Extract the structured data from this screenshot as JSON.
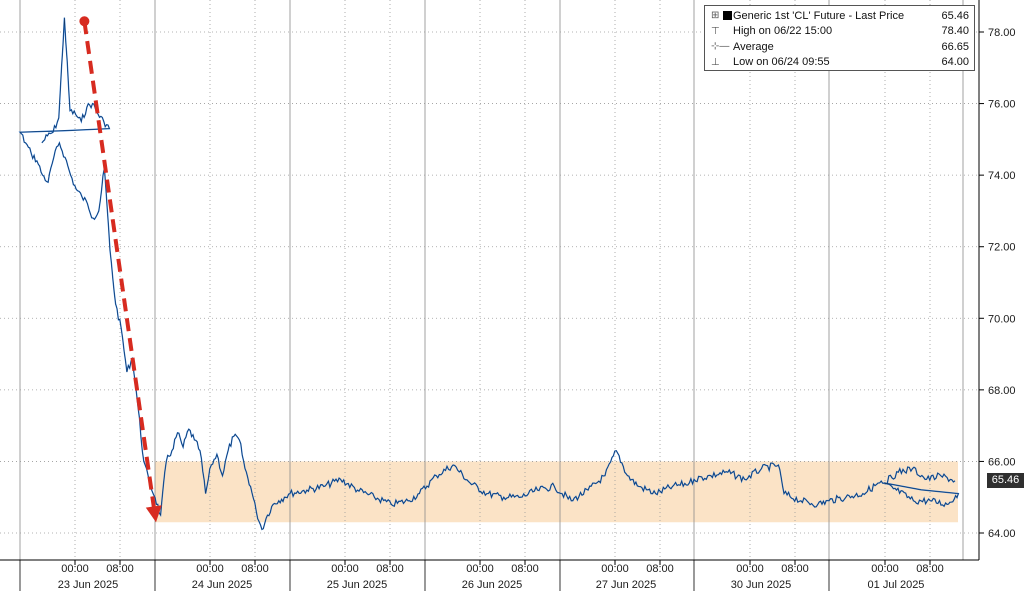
{
  "chart_data": {
    "type": "line",
    "title": "",
    "xlabel": "",
    "ylabel": "",
    "ylim": [
      63.6,
      78.8
    ],
    "y_ticks": [
      "64.00",
      "66.00",
      "68.00",
      "70.00",
      "72.00",
      "74.00",
      "76.00",
      "78.00"
    ],
    "x_time_labels": [
      "00:00",
      "08:00",
      "00:00",
      "08:00",
      "00:00",
      "08:00",
      "00:00",
      "08:00",
      "00:00",
      "08:00",
      "00:00",
      "08:00",
      "00:00",
      "08:00"
    ],
    "x_date_labels": [
      "23 Jun 2025",
      "24 Jun 2025",
      "25 Jun 2025",
      "26 Jun 2025",
      "27 Jun 2025",
      "30 Jun 2025",
      "01 Jul 2025"
    ],
    "series": [
      {
        "name": "Generic 1st 'CL' Future - Last Price",
        "color": "#1f6fcf",
        "points": [
          [
            "06/22 11:00",
            74.9
          ],
          [
            "06/22 12:00",
            75.1
          ],
          [
            "06/22 13:00",
            75.2
          ],
          [
            "06/22 14:00",
            75.6
          ],
          [
            "06/22 15:00",
            78.4
          ],
          [
            "06/22 16:00",
            75.8
          ],
          [
            "06/22 17:00",
            75.7
          ],
          [
            "06/22 18:00",
            75.5
          ],
          [
            "06/22 19:00",
            75.9
          ],
          [
            "06/22 20:00",
            76.0
          ],
          [
            "06/22 21:00",
            75.7
          ],
          [
            "06/22 22:00",
            75.5
          ],
          [
            "06/22 23:00",
            75.3
          ],
          [
            "06/23 00:00",
            75.2
          ],
          [
            "06/23 01:00",
            74.9
          ],
          [
            "06/23 02:00",
            74.6
          ],
          [
            "06/23 03:00",
            74.4
          ],
          [
            "06/23 04:00",
            74.0
          ],
          [
            "06/23 05:00",
            73.8
          ],
          [
            "06/23 06:00",
            74.5
          ],
          [
            "06/23 07:00",
            74.9
          ],
          [
            "06/23 08:00",
            74.5
          ],
          [
            "06/23 09:00",
            74.0
          ],
          [
            "06/23 10:00",
            73.6
          ],
          [
            "06/23 11:00",
            73.4
          ],
          [
            "06/23 12:00",
            73.2
          ],
          [
            "06/23 13:00",
            72.8
          ],
          [
            "06/23 14:00",
            73.0
          ],
          [
            "06/23 15:00",
            74.2
          ],
          [
            "06/23 16:00",
            71.9
          ],
          [
            "06/23 17:00",
            70.4
          ],
          [
            "06/23 18:00",
            69.7
          ],
          [
            "06/23 19:00",
            68.5
          ],
          [
            "06/23 20:00",
            68.9
          ],
          [
            "06/23 21:00",
            67.5
          ],
          [
            "06/23 22:00",
            66.0
          ],
          [
            "06/23 23:00",
            65.4
          ],
          [
            "06/24 00:00",
            65.0
          ],
          [
            "06/24 01:00",
            64.5
          ],
          [
            "06/24 02:00",
            66.0
          ],
          [
            "06/24 03:00",
            66.3
          ],
          [
            "06/24 04:00",
            66.8
          ],
          [
            "06/24 05:00",
            66.4
          ],
          [
            "06/24 06:00",
            66.9
          ],
          [
            "06/24 07:00",
            66.6
          ],
          [
            "06/24 08:00",
            66.3
          ],
          [
            "06/24 09:00",
            65.1
          ],
          [
            "06/24 10:00",
            65.9
          ],
          [
            "06/24 11:00",
            66.2
          ],
          [
            "06/24 12:00",
            65.6
          ],
          [
            "06/24 13:00",
            66.3
          ],
          [
            "06/24 14:00",
            66.7
          ],
          [
            "06/24 15:00",
            66.6
          ],
          [
            "06/24 16:00",
            65.8
          ],
          [
            "06/24 17:00",
            65.3
          ],
          [
            "06/24 18:00",
            64.6
          ],
          [
            "06/24 19:00",
            64.1
          ],
          [
            "06/24 20:00",
            64.5
          ],
          [
            "06/24 21:00",
            64.8
          ],
          [
            "06/24 22:00",
            64.9
          ],
          [
            "06/24 23:00",
            65.0
          ],
          [
            "06/25 00:00",
            65.1
          ],
          [
            "06/25 03:00",
            65.2
          ],
          [
            "06/25 06:00",
            65.3
          ],
          [
            "06/25 09:00",
            65.5
          ],
          [
            "06/25 12:00",
            65.2
          ],
          [
            "06/25 15:00",
            65.0
          ],
          [
            "06/25 18:00",
            64.8
          ],
          [
            "06/25 21:00",
            64.9
          ],
          [
            "06/25 23:00",
            65.1
          ],
          [
            "06/26 02:00",
            65.6
          ],
          [
            "06/26 05:00",
            65.9
          ],
          [
            "06/26 08:00",
            65.4
          ],
          [
            "06/26 11:00",
            65.1
          ],
          [
            "06/26 14:00",
            65.0
          ],
          [
            "06/26 17:00",
            65.0
          ],
          [
            "06/26 20:00",
            65.2
          ],
          [
            "06/26 23:00",
            65.3
          ],
          [
            "06/27 02:00",
            64.9
          ],
          [
            "06/27 05:00",
            65.2
          ],
          [
            "06/27 08:00",
            65.6
          ],
          [
            "06/27 10:00",
            66.3
          ],
          [
            "06/27 12:00",
            65.6
          ],
          [
            "06/27 14:00",
            65.3
          ],
          [
            "06/27 17:00",
            65.1
          ],
          [
            "06/27 20:00",
            65.3
          ],
          [
            "06/27 23:00",
            65.4
          ],
          [
            "06/30 00:00",
            65.5
          ],
          [
            "06/30 03:00",
            65.6
          ],
          [
            "06/30 06:00",
            65.7
          ],
          [
            "06/30 09:00",
            65.5
          ],
          [
            "06/30 12:00",
            65.8
          ],
          [
            "06/30 15:00",
            65.9
          ],
          [
            "06/30 16:00",
            65.1
          ],
          [
            "06/30 19:00",
            64.9
          ],
          [
            "06/30 22:00",
            64.8
          ],
          [
            "07/01 00:00",
            64.9
          ],
          [
            "07/01 03:00",
            65.0
          ],
          [
            "07/01 06:00",
            65.1
          ],
          [
            "07/01 09:00",
            65.4
          ],
          [
            "07/01 12:00",
            65.2
          ],
          [
            "07/01 15:00",
            64.9
          ],
          [
            "07/01 18:00",
            64.9
          ],
          [
            "07/01 21:00",
            64.8
          ],
          [
            "07/01 23:00",
            65.1
          ],
          [
            "07/02 01:00",
            65.4
          ],
          [
            "07/02 03:00",
            65.7
          ],
          [
            "07/02 05:00",
            65.8
          ],
          [
            "07/02 07:00",
            65.5
          ],
          [
            "07/02 09:00",
            65.6
          ],
          [
            "07/02 11:00",
            65.46
          ]
        ]
      }
    ],
    "highlight_band": {
      "y_from": 64.3,
      "y_to": 66.0,
      "color": "#fbe3c6"
    },
    "arrow_annotation": {
      "from": [
        "06/22 15:00",
        78.3
      ],
      "to": [
        "06/24 00:00",
        64.3
      ],
      "color": "#d72b20"
    },
    "grid": true,
    "legend": {
      "placement": "top-right",
      "items": [
        {
          "label": "Generic 1st 'CL' Future - Last Price",
          "value": "65.46"
        },
        {
          "label": "High on 06/22 15:00",
          "value": "78.40"
        },
        {
          "label": "Average",
          "value": "66.65"
        },
        {
          "label": "Low on 06/24 09:55",
          "value": "64.00"
        }
      ]
    },
    "last_price_label": "65.46"
  }
}
